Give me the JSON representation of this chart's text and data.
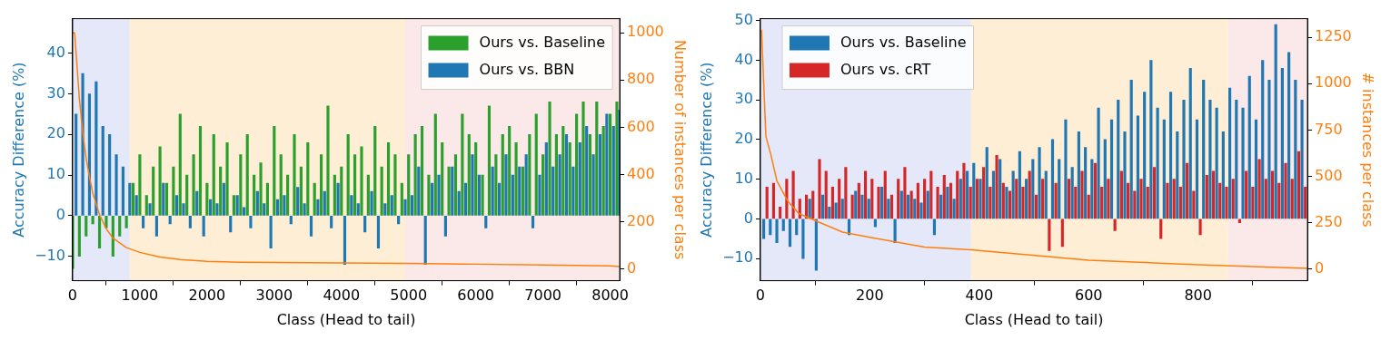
{
  "chart_data": [
    {
      "type": "bar",
      "xlabel": "Class (Head to tail)",
      "ylabel": "Accuracy Difference (%)",
      "y2label": "Number of instances per class",
      "legend": "top right",
      "x": [
        0,
        100,
        200,
        300,
        400,
        500,
        600,
        700,
        800,
        900,
        1000,
        1100,
        1200,
        1300,
        1400,
        1500,
        1600,
        1700,
        1800,
        1900,
        2000,
        2100,
        2200,
        2300,
        2400,
        2500,
        2600,
        2700,
        2800,
        2900,
        3000,
        3100,
        3200,
        3300,
        3400,
        3500,
        3600,
        3700,
        3800,
        3900,
        4000,
        4100,
        4200,
        4300,
        4400,
        4500,
        4600,
        4700,
        4800,
        4900,
        5000,
        5100,
        5200,
        5300,
        5400,
        5500,
        5600,
        5700,
        5800,
        5900,
        6000,
        6100,
        6200,
        6300,
        6400,
        6500,
        6600,
        6700,
        6800,
        6900,
        7000,
        7100,
        7200,
        7300,
        7400,
        7500,
        7600,
        7700,
        7800,
        7900,
        8000,
        8100
      ],
      "series": [
        {
          "name": "Ours vs. Baseline",
          "color": "#2ca02c",
          "values": [
            -13,
            -10,
            -5,
            -2,
            -8,
            -3,
            -10,
            -5,
            -3,
            8,
            15,
            5,
            12,
            17,
            8,
            12,
            25,
            10,
            15,
            22,
            8,
            20,
            12,
            18,
            5,
            15,
            20,
            10,
            13,
            8,
            22,
            15,
            10,
            20,
            12,
            18,
            8,
            15,
            27,
            10,
            12,
            20,
            15,
            17,
            10,
            22,
            12,
            18,
            15,
            8,
            15,
            20,
            22,
            10,
            25,
            18,
            12,
            15,
            25,
            20,
            18,
            10,
            27,
            15,
            20,
            22,
            18,
            12,
            20,
            25,
            15,
            28,
            20,
            22,
            18,
            25,
            28,
            20,
            28,
            22,
            25,
            28
          ]
        },
        {
          "name": "Ours vs. BBN",
          "color": "#1f77b4",
          "x": [
            50,
            150,
            250,
            350,
            450,
            550,
            650,
            750,
            850,
            950,
            1050,
            1150,
            1250,
            1350,
            1450,
            1550,
            1650,
            1750,
            1850,
            1950,
            2050,
            2150,
            2250,
            2350,
            2450,
            2550,
            2650,
            2750,
            2850,
            2950,
            3050,
            3150,
            3250,
            3350,
            3450,
            3550,
            3650,
            3750,
            3850,
            3950,
            4050,
            4150,
            4250,
            4350,
            4450,
            4550,
            4650,
            4750,
            4850,
            4950,
            5050,
            5150,
            5250,
            5350,
            5450,
            5550,
            5650,
            5750,
            5850,
            5950,
            6050,
            6150,
            6250,
            6350,
            6450,
            6550,
            6650,
            6750,
            6850,
            6950,
            7050,
            7150,
            7250,
            7350,
            7450,
            7550,
            7650,
            7750,
            7850,
            7950,
            8050,
            8140
          ],
          "values": [
            25,
            35,
            30,
            33,
            22,
            20,
            15,
            12,
            8,
            5,
            -3,
            3,
            -5,
            8,
            -2,
            5,
            3,
            -3,
            6,
            -5,
            4,
            3,
            8,
            -4,
            5,
            2,
            -3,
            6,
            3,
            -8,
            4,
            5,
            -2,
            7,
            3,
            -5,
            4,
            6,
            -3,
            8,
            -12,
            5,
            3,
            -4,
            6,
            -8,
            3,
            5,
            -2,
            4,
            5,
            12,
            -12,
            8,
            10,
            -5,
            12,
            6,
            8,
            15,
            10,
            -3,
            12,
            8,
            15,
            10,
            12,
            15,
            -3,
            10,
            18,
            12,
            15,
            20,
            12,
            18,
            22,
            15,
            20,
            25,
            22,
            26
          ]
        },
        {
          "type": "line",
          "axis": "y2",
          "color": "#ff7f0e",
          "x": [
            0,
            30,
            60,
            100,
            150,
            200,
            250,
            300,
            400,
            500,
            600,
            800,
            1000,
            1300,
            1600,
            2000,
            2500,
            3000,
            4000,
            5000,
            6000,
            7000,
            8000,
            8142
          ],
          "values": [
            1000,
            1000,
            880,
            720,
            580,
            470,
            390,
            320,
            230,
            170,
            130,
            90,
            70,
            50,
            40,
            32,
            28,
            27,
            25,
            23,
            20,
            17,
            13,
            10
          ]
        }
      ],
      "xlim": [
        0,
        8142
      ],
      "xticks": [
        0,
        1000,
        2000,
        3000,
        4000,
        5000,
        6000,
        7000,
        8000
      ],
      "ylim": [
        -16,
        48.5
      ],
      "yticks": [
        -10,
        0,
        10,
        20,
        30,
        40
      ],
      "y2lim": [
        -50,
        1060
      ],
      "y2ticks": [
        0,
        200,
        400,
        600,
        800,
        1000
      ],
      "bands": [
        {
          "axis": "x",
          "from": 0,
          "to": 850,
          "color": "#e5e8f8"
        },
        {
          "axis": "x",
          "from": 850,
          "to": 4950,
          "color": "#fdeed5"
        },
        {
          "axis": "x",
          "from": 4950,
          "to": 8142,
          "color": "#fbe8e8"
        }
      ]
    },
    {
      "type": "bar",
      "xlabel": "Class (Head to tail)",
      "ylabel": "Accuracy Difference (%)",
      "y2label": "# instances per class",
      "legend": "top left",
      "x": [
        6,
        18,
        30,
        42,
        54,
        66,
        78,
        90,
        102,
        114,
        126,
        138,
        150,
        162,
        174,
        186,
        198,
        210,
        222,
        234,
        246,
        258,
        270,
        282,
        294,
        306,
        318,
        330,
        342,
        354,
        366,
        378,
        390,
        402,
        414,
        426,
        438,
        450,
        462,
        474,
        486,
        498,
        510,
        522,
        534,
        546,
        558,
        570,
        582,
        594,
        606,
        618,
        630,
        642,
        654,
        666,
        678,
        690,
        702,
        714,
        726,
        738,
        750,
        762,
        774,
        786,
        798,
        810,
        822,
        834,
        846,
        858,
        870,
        882,
        894,
        906,
        918,
        930,
        942,
        954,
        966,
        978,
        990
      ],
      "series": [
        {
          "name": "Ours vs. Baseline",
          "color": "#1f77b4",
          "values": [
            -5,
            -4,
            -6,
            -3,
            -7,
            -4,
            -10,
            5,
            -13,
            6,
            3,
            4,
            5,
            -4,
            7,
            6,
            5,
            -2,
            8,
            5,
            -6,
            7,
            6,
            5,
            4,
            7,
            -4,
            6,
            8,
            5,
            10,
            12,
            14,
            10,
            18,
            12,
            15,
            8,
            12,
            17,
            10,
            15,
            18,
            12,
            20,
            15,
            25,
            13,
            22,
            18,
            15,
            28,
            20,
            25,
            30,
            22,
            35,
            26,
            32,
            40,
            28,
            25,
            32,
            22,
            30,
            38,
            25,
            35,
            30,
            28,
            22,
            33,
            30,
            28,
            36,
            25,
            40,
            35,
            49,
            38,
            42,
            35,
            30
          ]
        },
        {
          "name": "Ours vs. cRT",
          "color": "#d62728",
          "x": [
            12,
            24,
            36,
            48,
            60,
            72,
            84,
            96,
            108,
            120,
            132,
            144,
            156,
            168,
            180,
            192,
            204,
            216,
            228,
            240,
            252,
            264,
            276,
            288,
            300,
            312,
            324,
            336,
            348,
            360,
            372,
            384,
            396,
            408,
            420,
            432,
            444,
            456,
            468,
            480,
            492,
            504,
            516,
            528,
            540,
            552,
            564,
            576,
            588,
            600,
            612,
            624,
            636,
            648,
            660,
            672,
            684,
            696,
            708,
            720,
            732,
            744,
            756,
            768,
            780,
            792,
            804,
            816,
            828,
            840,
            852,
            864,
            876,
            888,
            900,
            912,
            924,
            936,
            948,
            960,
            972,
            984,
            996
          ],
          "values": [
            8,
            9,
            3,
            10,
            12,
            5,
            6,
            7,
            15,
            12,
            8,
            10,
            13,
            6,
            9,
            12,
            10,
            8,
            12,
            6,
            10,
            13,
            7,
            9,
            10,
            12,
            8,
            11,
            9,
            12,
            14,
            8,
            10,
            13,
            8,
            16,
            9,
            7,
            10,
            8,
            12,
            6,
            10,
            -8,
            9,
            -7,
            10,
            8,
            12,
            6,
            14,
            8,
            10,
            -3,
            12,
            9,
            7,
            10,
            8,
            13,
            -5,
            9,
            10,
            8,
            14,
            7,
            -4,
            11,
            12,
            9,
            8,
            10,
            -1,
            12,
            8,
            15,
            10,
            12,
            9,
            14,
            10,
            17,
            8
          ]
        },
        {
          "type": "line",
          "axis": "y2",
          "color": "#ff7f0e",
          "x": [
            2,
            10,
            20,
            30,
            50,
            70,
            100,
            150,
            200,
            300,
            385,
            600,
            800,
            1000
          ],
          "values": [
            1290,
            716,
            606,
            477,
            367,
            300,
            262,
            200,
            172,
            119,
            105,
            48,
            24,
            5
          ]
        }
      ],
      "xlim": [
        0,
        1000
      ],
      "xticks": [
        0,
        200,
        400,
        600,
        800
      ],
      "ylim": [
        -15.6,
        50.5
      ],
      "yticks": [
        -10,
        0,
        10,
        20,
        30,
        40,
        50
      ],
      "y2lim": [
        -62,
        1350
      ],
      "y2ticks": [
        0,
        250,
        500,
        750,
        1000,
        1250
      ],
      "bands": [
        {
          "axis": "x",
          "from": 0,
          "to": 385,
          "color": "#e5e8f8"
        },
        {
          "axis": "x",
          "from": 385,
          "to": 855,
          "color": "#fdeed5"
        },
        {
          "axis": "x",
          "from": 855,
          "to": 1000,
          "color": "#fbe8e8"
        }
      ]
    }
  ]
}
